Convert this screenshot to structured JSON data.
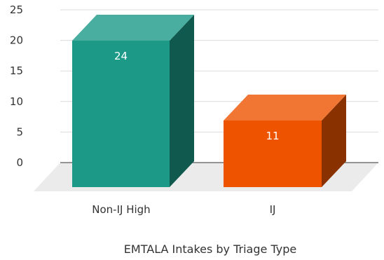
{
  "chart_data": {
    "type": "bar",
    "title": "EMTALA Intakes by Triage Type",
    "categories": [
      "Non-IJ High",
      "IJ"
    ],
    "series": [
      {
        "values": [
          24,
          11
        ],
        "data_labels": [
          "24",
          "11"
        ],
        "colors": [
          "#1c9a87",
          "#ee5400"
        ]
      }
    ],
    "y_ticks": [
      "0",
      "5",
      "10",
      "15",
      "20",
      "25"
    ],
    "ylim": [
      0,
      25
    ],
    "grid": true,
    "three_d": true
  }
}
